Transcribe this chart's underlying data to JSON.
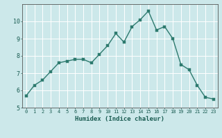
{
  "x": [
    0,
    1,
    2,
    3,
    4,
    5,
    6,
    7,
    8,
    9,
    10,
    11,
    12,
    13,
    14,
    15,
    16,
    17,
    18,
    19,
    20,
    21,
    22,
    23
  ],
  "y": [
    5.7,
    6.3,
    6.6,
    7.1,
    7.6,
    7.7,
    7.8,
    7.8,
    7.6,
    8.1,
    8.6,
    9.3,
    8.8,
    9.7,
    10.1,
    10.6,
    9.5,
    9.7,
    9.0,
    7.5,
    7.2,
    6.3,
    5.6,
    5.5
  ],
  "line_color": "#2d7a6e",
  "marker_color": "#2d7a6e",
  "bg_color": "#cce8ea",
  "grid_color": "#ffffff",
  "xlabel": "Humidex (Indice chaleur)",
  "ylabel": "",
  "xlim": [
    -0.5,
    23.5
  ],
  "ylim": [
    5,
    11
  ],
  "yticks": [
    5,
    6,
    7,
    8,
    9,
    10
  ],
  "xticks": [
    0,
    1,
    2,
    3,
    4,
    5,
    6,
    7,
    8,
    9,
    10,
    11,
    12,
    13,
    14,
    15,
    16,
    17,
    18,
    19,
    20,
    21,
    22,
    23
  ],
  "xlabel_color": "#1a5c52",
  "tick_color": "#1a5c52",
  "tick_label_color": "#1a5c52",
  "axis_color": "#555555",
  "grid_linewidth": 0.7,
  "line_width": 1.0,
  "marker_size": 2.5,
  "xtick_fontsize": 5.0,
  "ytick_fontsize": 6.0,
  "xlabel_fontsize": 6.5
}
